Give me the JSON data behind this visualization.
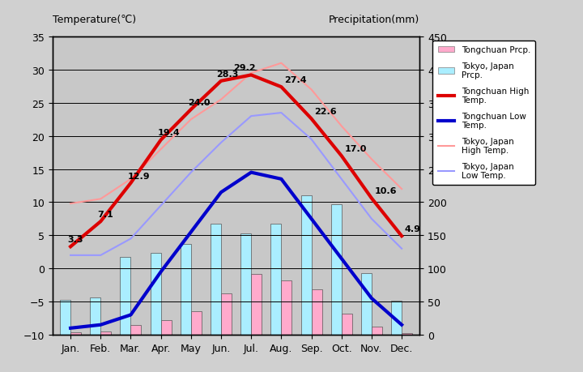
{
  "months": [
    "Jan.",
    "Feb.",
    "Mar.",
    "Apr.",
    "May",
    "Jun.",
    "Jul.",
    "Aug.",
    "Sep.",
    "Oct.",
    "Nov.",
    "Dec."
  ],
  "tongchuan_high": [
    3.3,
    7.1,
    12.9,
    19.4,
    24.0,
    28.3,
    29.2,
    27.4,
    22.6,
    17.0,
    10.6,
    4.9
  ],
  "tongchuan_low": [
    -9.0,
    -8.5,
    -7.0,
    -0.5,
    5.5,
    11.5,
    14.5,
    13.5,
    7.5,
    1.5,
    -4.5,
    -8.5
  ],
  "tokyo_high": [
    9.8,
    10.5,
    13.5,
    18.0,
    22.5,
    25.5,
    29.5,
    31.0,
    27.0,
    21.5,
    16.5,
    12.0
  ],
  "tokyo_low": [
    2.0,
    2.0,
    4.5,
    9.5,
    14.5,
    19.0,
    23.0,
    23.5,
    19.5,
    13.5,
    7.5,
    3.0
  ],
  "tokyo_prcp_mm": [
    52,
    56,
    117,
    124,
    137,
    167,
    153,
    168,
    210,
    197,
    93,
    51
  ],
  "tongchuan_prcp_mm": [
    4,
    5,
    15,
    22,
    35,
    62,
    92,
    82,
    68,
    32,
    12,
    3
  ],
  "plot_bg_color": "#c8c8c8",
  "fig_bg_color": "#d0d0d0",
  "title_left": "Temperature(℃)",
  "title_right": "Precipitation(mm)",
  "ylim_temp": [
    -10,
    35
  ],
  "ylim_prcp": [
    0,
    450
  ],
  "tongchuan_high_color": "#dd0000",
  "tongchuan_low_color": "#0000cc",
  "tokyo_high_color": "#ff9999",
  "tokyo_low_color": "#9999ff",
  "tokyo_bar_color": "#aaeeff",
  "tongchuan_bar_color": "#ffaacc"
}
